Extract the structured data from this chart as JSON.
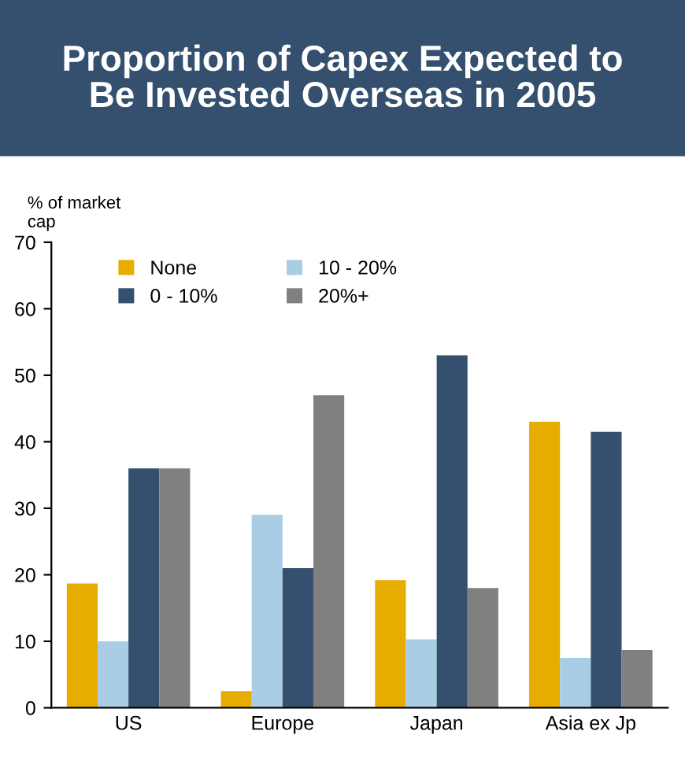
{
  "chart_data": {
    "type": "bar",
    "title": "Proportion of Capex Expected to\nBe Invested Overseas in 2005",
    "ylabel": "% of market\ncap",
    "categories": [
      "US",
      "Europe",
      "Japan",
      "Asia ex Jp"
    ],
    "series": [
      {
        "name": "None",
        "color": "#e6ac00",
        "values": [
          18.7,
          2.5,
          19.2,
          43
        ]
      },
      {
        "name": "10 - 20%",
        "color": "#a9cde4",
        "values": [
          10,
          29,
          10.3,
          7.5
        ]
      },
      {
        "name": "0 - 10%",
        "color": "#35506f",
        "values": [
          36,
          21,
          53,
          41.5
        ]
      },
      {
        "name": "20%+",
        "color": "#808080",
        "values": [
          36,
          47,
          18,
          8.7
        ]
      }
    ],
    "ylim": [
      0,
      70
    ],
    "yticks": [
      0,
      10,
      20,
      30,
      40,
      50,
      60,
      70
    ],
    "grid": false,
    "legend": "top left"
  }
}
